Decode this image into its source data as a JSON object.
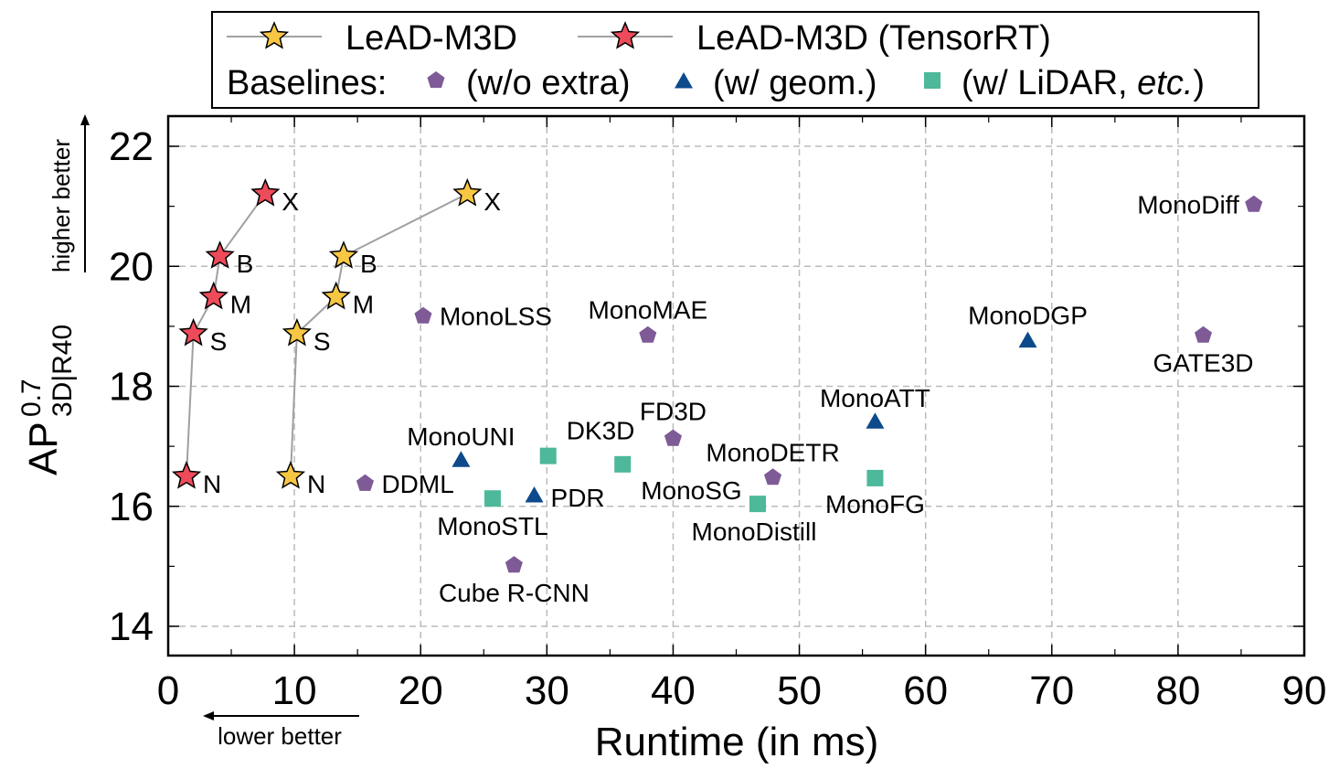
{
  "chart_data": {
    "type": "scatter",
    "xlabel": "Runtime (in ms)",
    "ylabel_main": "AP",
    "ylabel_sup": "0.7",
    "ylabel_sub": "3D|R40",
    "x_hint": "lower better",
    "y_hint": "higher better",
    "xlim": [
      0,
      90
    ],
    "ylim": [
      13.5,
      22.5
    ],
    "xticks": [
      0,
      10,
      20,
      30,
      40,
      50,
      60,
      70,
      80,
      90
    ],
    "yticks": [
      14,
      16,
      18,
      20,
      22
    ],
    "grid": true,
    "legend_placement": "top",
    "legend": {
      "row1": [
        "LeAD-M3D",
        "LeAD-M3D (TensorRT)"
      ],
      "baselines_label": "Baselines:",
      "row2": [
        "(w/o extra)",
        "(w/ geom.)",
        "(w/ LiDAR, ",
        "etc.",
        ")"
      ]
    },
    "colors": {
      "lead": "#f7c744",
      "lead_trt": "#ee4b5a",
      "wo_extra": "#7e5a96",
      "geom": "#0d4a8c",
      "lidar": "#4db89a",
      "line": "#a0a0a0"
    },
    "series": [
      {
        "name": "LeAD-M3D",
        "marker": "star",
        "connected": true,
        "points": [
          {
            "label": "N",
            "x": 9.7,
            "y": 16.5
          },
          {
            "label": "S",
            "x": 10.2,
            "y": 18.88
          },
          {
            "label": "M",
            "x": 13.3,
            "y": 19.49
          },
          {
            "label": "B",
            "x": 13.9,
            "y": 20.17
          },
          {
            "label": "X",
            "x": 23.7,
            "y": 21.21
          }
        ]
      },
      {
        "name": "LeAD-M3D (TensorRT)",
        "marker": "star",
        "connected": true,
        "points": [
          {
            "label": "N",
            "x": 1.45,
            "y": 16.5
          },
          {
            "label": "S",
            "x": 2.0,
            "y": 18.88
          },
          {
            "label": "M",
            "x": 3.6,
            "y": 19.49
          },
          {
            "label": "B",
            "x": 4.1,
            "y": 20.17
          },
          {
            "label": "X",
            "x": 7.7,
            "y": 21.21
          }
        ]
      },
      {
        "name": "(w/o extra)",
        "marker": "pentagon",
        "points": [
          {
            "label": "MonoDiff",
            "x": 86.0,
            "y": 21.03
          },
          {
            "label": "GATE3D",
            "x": 82.0,
            "y": 18.85
          },
          {
            "label": "MonoLSS",
            "x": 20.2,
            "y": 19.17
          },
          {
            "label": "MonoMAE",
            "x": 38.0,
            "y": 18.85
          },
          {
            "label": "FD3D",
            "x": 40.0,
            "y": 17.13
          },
          {
            "label": "MonoDETR",
            "x": 47.9,
            "y": 16.48
          },
          {
            "label": "DDML",
            "x": 15.6,
            "y": 16.38
          },
          {
            "label": "Cube R-CNN",
            "x": 27.4,
            "y": 15.02
          }
        ]
      },
      {
        "name": "(w/ geom.)",
        "marker": "triangle",
        "points": [
          {
            "label": "MonoDGP",
            "x": 68.1,
            "y": 18.76
          },
          {
            "label": "MonoATT",
            "x": 56.0,
            "y": 17.41
          },
          {
            "label": "MonoUNI",
            "x": 23.2,
            "y": 16.77
          },
          {
            "label": "PDR",
            "x": 29.0,
            "y": 16.18
          }
        ]
      },
      {
        "name": "(w/ LiDAR, etc.)",
        "marker": "square",
        "points": [
          {
            "label": "DK3D",
            "x": 30.1,
            "y": 16.84
          },
          {
            "label": "MonoSG",
            "x": 36.0,
            "y": 16.7
          },
          {
            "label": "MonoSTL",
            "x": 25.7,
            "y": 16.13
          },
          {
            "label": "MonoDistill",
            "x": 46.7,
            "y": 16.04
          },
          {
            "label": "MonoFG",
            "x": 56.0,
            "y": 16.47
          }
        ]
      }
    ]
  }
}
